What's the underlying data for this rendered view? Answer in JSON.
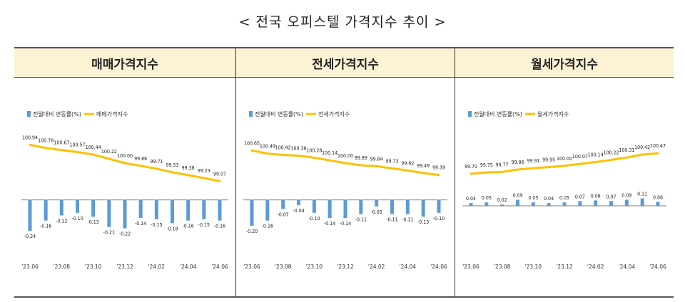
{
  "page": {
    "title": "< 전국 오피스텔 가격지수 추이 >"
  },
  "colors": {
    "bar": "#5b9bd5",
    "line": "#ffc000",
    "header_bg": "#fcf2d4"
  },
  "chart_data": [
    {
      "type": "bar+line",
      "title": "매매가격지수",
      "legend": [
        "전월대비 변동률(%)",
        "매매가격지수"
      ],
      "x_ticks": [
        "'23.06",
        "'23.08",
        "'23.10",
        "'23.12",
        "'24.02",
        "'24.04",
        "'24.06"
      ],
      "change": [
        -0.24,
        -0.16,
        -0.12,
        -0.1,
        -0.13,
        -0.21,
        -0.22,
        -0.14,
        -0.15,
        -0.18,
        -0.16,
        -0.15,
        -0.16
      ],
      "index": [
        100.94,
        100.78,
        100.67,
        100.57,
        100.44,
        100.22,
        100.0,
        99.86,
        99.71,
        99.53,
        99.38,
        99.23,
        99.07
      ],
      "change_labels": [
        "-0.24",
        "-0.16",
        "-0.12",
        "-0.10",
        "-0.13",
        "-0.21",
        "-0.22",
        "-0.14",
        "-0.15",
        "-0.18",
        "-0.16",
        "-0.15",
        "-0.16"
      ],
      "index_labels": [
        "100.94",
        "100.78",
        "100.67",
        "100.57",
        "100.44",
        "100.22",
        "100.00",
        "99.86",
        "99.71",
        "99.53",
        "99.38",
        "99.23",
        "99.07"
      ],
      "index_range": [
        98.9,
        101.1
      ],
      "change_range": [
        -0.3,
        0.12
      ]
    },
    {
      "type": "bar+line",
      "title": "전세가격지수",
      "legend": [
        "전월대비 변동률(%)",
        "전세가격지수"
      ],
      "x_ticks": [
        "'23.06",
        "'23.08",
        "'23.10",
        "'23.12",
        "'24.02",
        "'24.04",
        "'24.06"
      ],
      "change": [
        -0.2,
        -0.16,
        -0.07,
        -0.04,
        -0.1,
        -0.14,
        -0.14,
        -0.11,
        -0.05,
        -0.11,
        -0.11,
        -0.13,
        -0.1
      ],
      "index": [
        100.65,
        100.49,
        100.42,
        100.38,
        100.28,
        100.14,
        100.0,
        99.89,
        99.84,
        99.73,
        99.62,
        99.49,
        99.39
      ],
      "change_labels": [
        "-0.20",
        "-0.16",
        "-0.07",
        "-0.04",
        "-0.10",
        "-0.14",
        "-0.14",
        "-0.11",
        "-0.05",
        "-0.11",
        "-0.11",
        "-0.13",
        "-0.10"
      ],
      "index_labels": [
        "100.65",
        "100.49",
        "100.42",
        "100.38",
        "100.28",
        "100.14",
        "100.00",
        "99.89",
        "99.84",
        "99.73",
        "99.62",
        "99.49",
        "99.39"
      ],
      "index_range": [
        98.9,
        101.1
      ],
      "change_range": [
        -0.3,
        0.12
      ]
    },
    {
      "type": "bar+line",
      "title": "월세가격지수",
      "legend": [
        "전월대비 변동률(%)",
        "월세가격지수"
      ],
      "x_ticks": [
        "'23.06",
        "'23.08",
        "'23.10",
        "'23.12",
        "'24.02",
        "'24.04",
        "'24.06"
      ],
      "change": [
        0.04,
        0.05,
        0.02,
        0.09,
        0.05,
        0.04,
        0.05,
        0.07,
        0.08,
        0.07,
        0.09,
        0.11,
        0.06
      ],
      "index": [
        99.7,
        99.75,
        99.77,
        99.86,
        99.91,
        99.95,
        100.0,
        100.07,
        100.14,
        100.22,
        100.31,
        100.42,
        100.47
      ],
      "change_labels": [
        "0.04",
        "0.05",
        "0.02",
        "0.09",
        "0.05",
        "0.04",
        "0.05",
        "0.07",
        "0.08",
        "0.07",
        "0.09",
        "0.11",
        "0.06"
      ],
      "index_labels": [
        "99.70",
        "99.75",
        "99.77",
        "99.86",
        "99.91",
        "99.95",
        "100.00",
        "100.07",
        "100.14",
        "100.22",
        "100.31",
        "100.42",
        "100.47"
      ],
      "index_range": [
        99.3,
        100.9
      ],
      "change_range": [
        0.0,
        0.42
      ]
    }
  ]
}
